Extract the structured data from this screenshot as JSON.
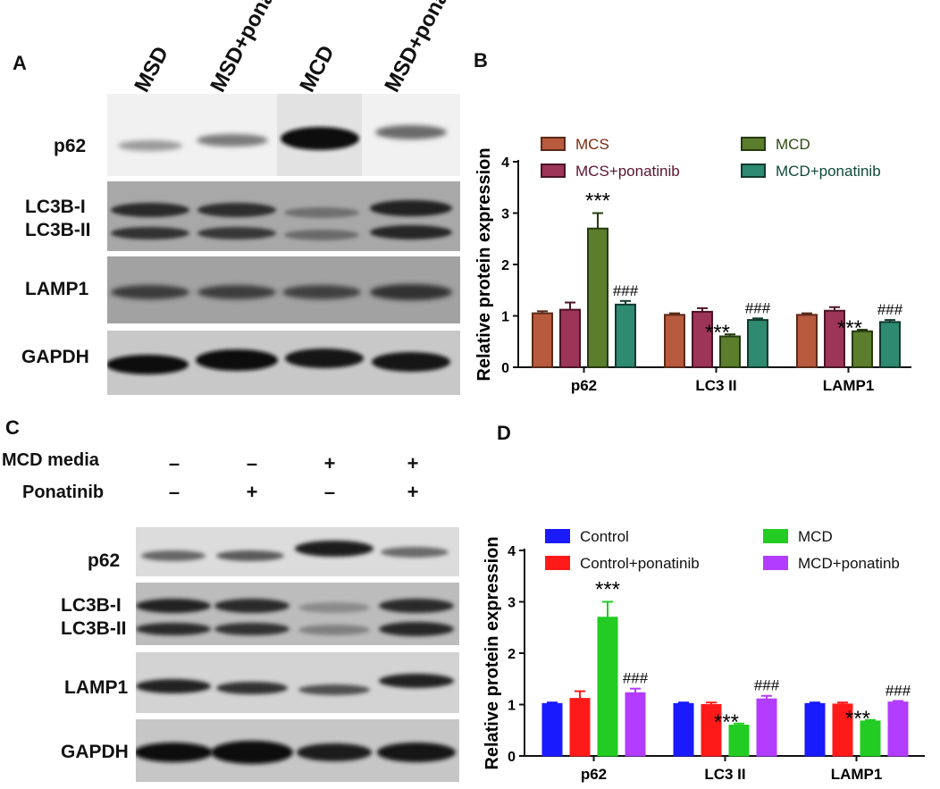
{
  "panels": {
    "A": {
      "letter": "A",
      "lanes": [
        "MSD",
        "MSD+pona",
        "MCD",
        "MSD+pona"
      ],
      "blots": {
        "p62": "p62",
        "lc3b1": "LC3B-I",
        "lc3b2": "LC3B-II",
        "lamp1": "LAMP1",
        "gapdh": "GAPDH"
      }
    },
    "B": {
      "letter": "B"
    },
    "C": {
      "letter": "C",
      "condition_rows": [
        {
          "label": "MCD media",
          "signs": [
            "–",
            "–",
            "+",
            "+"
          ]
        },
        {
          "label": "Ponatinib",
          "signs": [
            "–",
            "+",
            "–",
            "+"
          ]
        }
      ],
      "blots": {
        "p62": "p62",
        "lc3b1": "LC3B-I",
        "lc3b2": "LC3B-II",
        "lamp1": "LAMP1",
        "gapdh": "GAPDH"
      }
    },
    "D": {
      "letter": "D"
    }
  },
  "chart_data": [
    {
      "panel": "B",
      "type": "bar",
      "ylabel": "Relative protein expression",
      "ylim": [
        0,
        4
      ],
      "yticks": [
        "0",
        "1",
        "2",
        "3",
        "4"
      ],
      "categories": [
        "p62",
        "LC3 II",
        "LAMP1"
      ],
      "legend_position": "top",
      "series": [
        {
          "name": "MCS",
          "color": "#b85a3e",
          "edge": "#5a2a18",
          "values": [
            1.05,
            1.02,
            1.02
          ],
          "errors": [
            0.04,
            0.03,
            0.03
          ]
        },
        {
          "name": "MCS+ponatinib",
          "color": "#9c3558",
          "edge": "#4a1428",
          "values": [
            1.12,
            1.08,
            1.1
          ],
          "errors": [
            0.14,
            0.07,
            0.07
          ]
        },
        {
          "name": "MCD",
          "color": "#5b7d2c",
          "edge": "#263a10",
          "values": [
            2.7,
            0.6,
            0.7
          ],
          "errors": [
            0.3,
            0.04,
            0.03
          ]
        },
        {
          "name": "MCD+ponatinib",
          "color": "#2e8a70",
          "edge": "#0f3a2e",
          "values": [
            1.22,
            0.92,
            0.88
          ],
          "errors": [
            0.07,
            0.03,
            0.04
          ]
        }
      ],
      "annotations": [
        {
          "text": "***",
          "category": 0,
          "series": 2
        },
        {
          "text": "###",
          "category": 0,
          "series": 3
        },
        {
          "text": "***",
          "category": 1,
          "series": 2
        },
        {
          "text": "###",
          "category": 1,
          "series": 3
        },
        {
          "text": "***",
          "category": 2,
          "series": 2
        },
        {
          "text": "###",
          "category": 2,
          "series": 3
        }
      ]
    },
    {
      "panel": "D",
      "type": "bar",
      "ylabel": "Relative protein expression",
      "ylim": [
        0,
        4
      ],
      "yticks": [
        "0",
        "1",
        "2",
        "3",
        "4"
      ],
      "categories": [
        "p62",
        "LC3 II",
        "LAMP1"
      ],
      "legend_position": "top",
      "series": [
        {
          "name": "Control",
          "color": "#1a1aff",
          "edge": "#1a1aff",
          "values": [
            1.02,
            1.02,
            1.02
          ],
          "errors": [
            0.02,
            0.02,
            0.02
          ]
        },
        {
          "name": "Control+ponatinib",
          "color": "#ff1a1a",
          "edge": "#ff1a1a",
          "values": [
            1.12,
            1.0,
            1.01
          ],
          "errors": [
            0.14,
            0.04,
            0.03
          ]
        },
        {
          "name": "MCD",
          "color": "#22cc22",
          "edge": "#22cc22",
          "values": [
            2.7,
            0.6,
            0.68
          ],
          "errors": [
            0.3,
            0.03,
            0.02
          ]
        },
        {
          "name": "MCD+ponatinb",
          "color": "#b23dff",
          "edge": "#b23dff",
          "values": [
            1.23,
            1.11,
            1.05
          ],
          "errors": [
            0.08,
            0.06,
            0.02
          ]
        }
      ],
      "annotations": [
        {
          "text": "***",
          "category": 0,
          "series": 2
        },
        {
          "text": "###",
          "category": 0,
          "series": 3
        },
        {
          "text": "***",
          "category": 1,
          "series": 2
        },
        {
          "text": "###",
          "category": 1,
          "series": 3
        },
        {
          "text": "***",
          "category": 2,
          "series": 2
        },
        {
          "text": "###",
          "category": 2,
          "series": 3
        }
      ]
    }
  ]
}
